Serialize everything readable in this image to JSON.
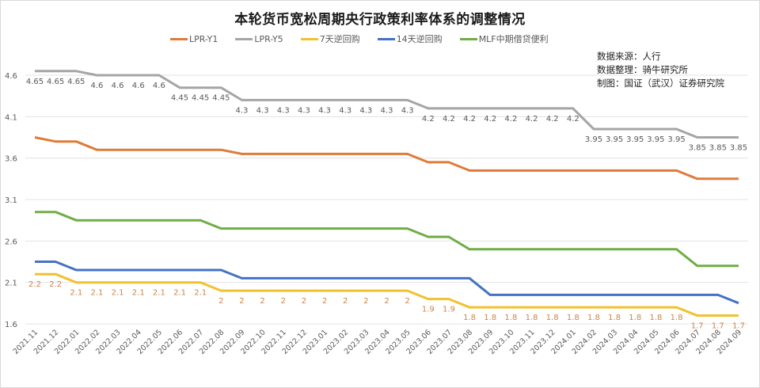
{
  "chart_data": {
    "type": "line",
    "title": "本轮货币宽松周期央行政策利率体系的调整情况",
    "xlabel": "",
    "ylabel": "",
    "ylim": [
      1.6,
      4.6
    ],
    "yticks": [
      "4.6",
      "4.1",
      "3.6",
      "3.1",
      "2.6",
      "2.1",
      "1.6"
    ],
    "grid": true,
    "legend_position": "top",
    "categories": [
      "2021.11",
      "2021.12",
      "2022.01",
      "2022.02",
      "2022.03",
      "2022.04",
      "2022.05",
      "2022.06",
      "2022.07",
      "2022.08",
      "2022.09",
      "2022.10",
      "2022.11",
      "2022.12",
      "2023.01",
      "2023.02",
      "2023.03",
      "2023.04",
      "2023.05",
      "2023.06",
      "2023.07",
      "2023.08",
      "2023.09",
      "2023.10",
      "2023.11",
      "2023.12",
      "2024.01",
      "2024.02",
      "2024.03",
      "2024.04",
      "2024.05",
      "2024.06",
      "2024.07",
      "2024.08",
      "2024.09"
    ],
    "series": [
      {
        "name": "LPR-Y1",
        "color": "#e07b39",
        "labeled": false,
        "values": [
          3.85,
          3.8,
          3.8,
          3.7,
          3.7,
          3.7,
          3.7,
          3.7,
          3.7,
          3.7,
          3.65,
          3.65,
          3.65,
          3.65,
          3.65,
          3.65,
          3.65,
          3.65,
          3.65,
          3.55,
          3.55,
          3.45,
          3.45,
          3.45,
          3.45,
          3.45,
          3.45,
          3.45,
          3.45,
          3.45,
          3.45,
          3.45,
          3.35,
          3.35,
          3.35
        ]
      },
      {
        "name": "LPR-Y5",
        "color": "#a5a5a5",
        "labeled": true,
        "values": [
          4.65,
          4.65,
          4.65,
          4.6,
          4.6,
          4.6,
          4.6,
          4.45,
          4.45,
          4.45,
          4.3,
          4.3,
          4.3,
          4.3,
          4.3,
          4.3,
          4.3,
          4.3,
          4.3,
          4.2,
          4.2,
          4.2,
          4.2,
          4.2,
          4.2,
          4.2,
          4.2,
          3.95,
          3.95,
          3.95,
          3.95,
          3.95,
          3.85,
          3.85,
          3.85
        ]
      },
      {
        "name": "7天逆回购",
        "color": "#f2c12e",
        "labeled": true,
        "values": [
          2.2,
          2.2,
          2.1,
          2.1,
          2.1,
          2.1,
          2.1,
          2.1,
          2.1,
          2,
          2,
          2,
          2,
          2,
          2,
          2,
          2,
          2,
          2,
          1.9,
          1.9,
          1.8,
          1.8,
          1.8,
          1.8,
          1.8,
          1.8,
          1.8,
          1.8,
          1.8,
          1.8,
          1.8,
          1.7,
          1.7,
          1.7
        ]
      },
      {
        "name": "14天逆回购",
        "color": "#4472c4",
        "labeled": false,
        "values": [
          2.35,
          2.35,
          2.25,
          2.25,
          2.25,
          2.25,
          2.25,
          2.25,
          2.25,
          2.25,
          2.15,
          2.15,
          2.15,
          2.15,
          2.15,
          2.15,
          2.15,
          2.15,
          2.15,
          2.15,
          2.15,
          2.15,
          1.95,
          1.95,
          1.95,
          1.95,
          1.95,
          1.95,
          1.95,
          1.95,
          1.95,
          1.95,
          1.95,
          1.95,
          1.85
        ]
      },
      {
        "name": "MLF中期借贷便利",
        "color": "#70ad47",
        "labeled": false,
        "values": [
          2.95,
          2.95,
          2.85,
          2.85,
          2.85,
          2.85,
          2.85,
          2.85,
          2.85,
          2.75,
          2.75,
          2.75,
          2.75,
          2.75,
          2.75,
          2.75,
          2.75,
          2.75,
          2.75,
          2.65,
          2.65,
          2.5,
          2.5,
          2.5,
          2.5,
          2.5,
          2.5,
          2.5,
          2.5,
          2.5,
          2.5,
          2.5,
          2.3,
          2.3,
          2.3
        ]
      }
    ],
    "annotations": [
      "数据来源：人行",
      "数据整理：骑牛研究所",
      "制图：国证（武汉）证券研究院"
    ]
  },
  "header": {
    "title": "本轮货币宽松周期央行政策利率体系的调整情况"
  },
  "legend": [
    {
      "label": "LPR-Y1",
      "color": "#e07b39"
    },
    {
      "label": "LPR-Y5",
      "color": "#a5a5a5"
    },
    {
      "label": "7天逆回购",
      "color": "#f2c12e"
    },
    {
      "label": "14天逆回购",
      "color": "#4472c4"
    },
    {
      "label": "MLF中期借贷便利",
      "color": "#70ad47"
    }
  ],
  "source": {
    "line1": "数据来源：人行",
    "line2": "数据整理：骑牛研究所",
    "line3": "制图：国证（武汉）证券研究院"
  }
}
